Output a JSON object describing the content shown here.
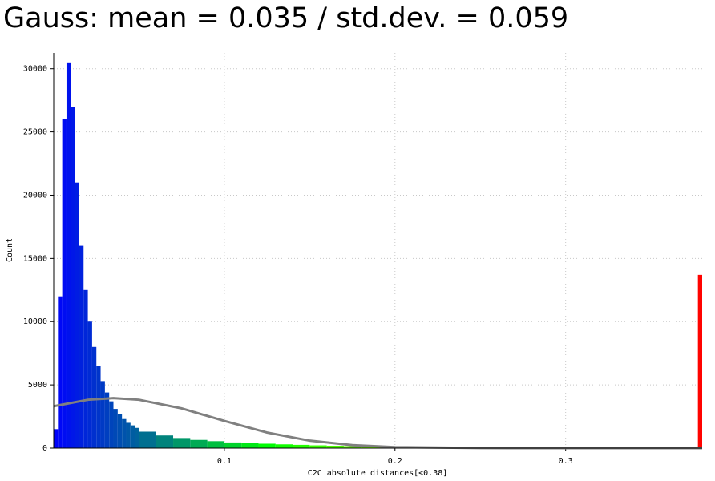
{
  "chart_data": {
    "type": "histogram",
    "title": "Gauss: mean = 0.035 / std.dev. = 0.059",
    "x_label": "C2C absolute distances[<0.38]",
    "y_label": "Count",
    "bins": [
      0,
      0.0025,
      0.005,
      0.0075,
      0.01,
      0.0125,
      0.015,
      0.0175,
      0.02,
      0.0225,
      0.025,
      0.0275,
      0.03,
      0.0325,
      0.035,
      0.0375,
      0.04,
      0.0425,
      0.045,
      0.0475,
      0.05,
      0.06,
      0.07,
      0.08,
      0.09,
      0.1,
      0.11,
      0.12,
      0.13,
      0.14,
      0.15,
      0.16,
      0.17,
      0.18,
      0.19,
      0.2,
      0.21,
      0.22,
      0.23,
      0.24,
      0.25,
      0.26,
      0.27,
      0.28,
      0.29,
      0.3,
      0.31,
      0.32,
      0.33,
      0.34,
      0.35,
      0.36,
      0.37,
      0.3775,
      0.38
    ],
    "values": [
      1500,
      12000,
      26000,
      30500,
      27000,
      21000,
      16000,
      12500,
      10000,
      8000,
      6500,
      5300,
      4400,
      3700,
      3100,
      2700,
      2300,
      2000,
      1800,
      1600,
      1300,
      1000,
      800,
      650,
      550,
      450,
      400,
      350,
      300,
      260,
      220,
      190,
      160,
      140,
      120,
      100,
      90,
      80,
      75,
      70,
      65,
      60,
      55,
      52,
      50,
      48,
      45,
      42,
      40,
      38,
      36,
      34,
      32,
      13700
    ],
    "colormap": [
      "#0000ff",
      "#00ff00",
      "#ffff00",
      "#ff0000"
    ],
    "curve": {
      "x": [
        0,
        0.02,
        0.035,
        0.05,
        0.075,
        0.1,
        0.125,
        0.15,
        0.175,
        0.2,
        0.25,
        0.3,
        0.38
      ],
      "values": [
        3313,
        3823,
        3950,
        3823,
        3140,
        2153,
        1233,
        591,
        236,
        79,
        5,
        0,
        0
      ],
      "color": "#808080"
    },
    "xlim": [
      0,
      0.38
    ],
    "ylim": [
      0,
      31250
    ],
    "xticks": [
      0.1,
      0.2,
      0.3
    ],
    "yticks": [
      0,
      5000,
      10000,
      15000,
      20000,
      25000,
      30000
    ],
    "grid": true
  }
}
